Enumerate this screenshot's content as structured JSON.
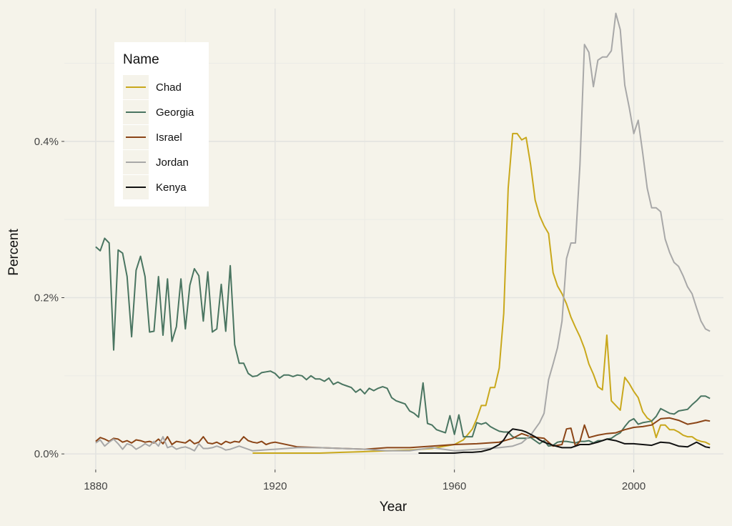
{
  "chart_data": {
    "type": "line",
    "xlabel": "Year",
    "ylabel": "Percent",
    "xlim": [
      1873,
      2020
    ],
    "ylim": [
      -0.0002,
      0.0057
    ],
    "x_ticks": [
      1880,
      1920,
      1960,
      2000
    ],
    "y_ticks": [
      0,
      0.002,
      0.004
    ],
    "y_tick_labels": [
      "0.0%",
      "0.2%",
      "0.4%"
    ],
    "grid": true,
    "legend": {
      "title": "Name",
      "placement": "top-left"
    },
    "series": [
      {
        "name": "Chad",
        "color": "#c9a81c",
        "x": [
          1915,
          1920,
          1925,
          1930,
          1935,
          1940,
          1945,
          1950,
          1955,
          1958,
          1960,
          1962,
          1964,
          1965,
          1966,
          1967,
          1968,
          1969,
          1970,
          1971,
          1972,
          1973,
          1974,
          1975,
          1976,
          1977,
          1978,
          1979,
          1980,
          1981,
          1982,
          1983,
          1984,
          1985,
          1986,
          1987,
          1988,
          1989,
          1990,
          1991,
          1992,
          1993,
          1994,
          1995,
          1996,
          1997,
          1998,
          1999,
          2000,
          2001,
          2002,
          2003,
          2004,
          2005,
          2006,
          2007,
          2008,
          2009,
          2010,
          2011,
          2012,
          2013,
          2014,
          2015,
          2016,
          2017
        ],
        "y": [
          1e-05,
          1e-05,
          1e-05,
          1e-05,
          2e-05,
          3e-05,
          4e-05,
          5e-05,
          7e-05,
          0.0001,
          0.00012,
          0.00018,
          0.00032,
          0.00045,
          0.00062,
          0.00062,
          0.00085,
          0.00085,
          0.0011,
          0.0018,
          0.0034,
          0.0041,
          0.0041,
          0.00402,
          0.00405,
          0.0037,
          0.00325,
          0.00305,
          0.00292,
          0.00282,
          0.00232,
          0.00215,
          0.00205,
          0.00192,
          0.00175,
          0.00162,
          0.0015,
          0.00135,
          0.00115,
          0.00102,
          0.00086,
          0.00082,
          0.00152,
          0.00068,
          0.00062,
          0.00056,
          0.00098,
          0.0009,
          0.0008,
          0.00072,
          0.00054,
          0.00046,
          0.00042,
          0.00021,
          0.00037,
          0.00037,
          0.00031,
          0.00031,
          0.00028,
          0.00024,
          0.00022,
          0.00022,
          0.00018,
          0.00016,
          0.00015,
          0.00012
        ]
      },
      {
        "name": "Georgia",
        "color": "#4a7561",
        "x": [
          1880,
          1881,
          1882,
          1883,
          1884,
          1885,
          1886,
          1887,
          1888,
          1889,
          1890,
          1891,
          1892,
          1893,
          1894,
          1895,
          1896,
          1897,
          1898,
          1899,
          1900,
          1901,
          1902,
          1903,
          1904,
          1905,
          1906,
          1907,
          1908,
          1909,
          1910,
          1911,
          1912,
          1913,
          1914,
          1915,
          1916,
          1917,
          1918,
          1919,
          1920,
          1921,
          1922,
          1923,
          1924,
          1925,
          1926,
          1927,
          1928,
          1929,
          1930,
          1931,
          1932,
          1933,
          1934,
          1935,
          1936,
          1937,
          1938,
          1939,
          1940,
          1941,
          1942,
          1943,
          1944,
          1945,
          1946,
          1947,
          1948,
          1949,
          1950,
          1951,
          1952,
          1953,
          1954,
          1955,
          1956,
          1957,
          1958,
          1959,
          1960,
          1961,
          1962,
          1963,
          1964,
          1965,
          1966,
          1967,
          1968,
          1969,
          1970,
          1971,
          1972,
          1973,
          1974,
          1975,
          1976,
          1977,
          1978,
          1979,
          1980,
          1981,
          1982,
          1983,
          1984,
          1985,
          1986,
          1987,
          1988,
          1989,
          1990,
          1991,
          1992,
          1993,
          1994,
          1995,
          1996,
          1997,
          1998,
          1999,
          2000,
          2001,
          2002,
          2003,
          2004,
          2005,
          2006,
          2007,
          2008,
          2009,
          2010,
          2011,
          2012,
          2013,
          2014,
          2015,
          2016,
          2017
        ],
        "y": [
          0.00265,
          0.0026,
          0.00276,
          0.0027,
          0.00133,
          0.00261,
          0.00257,
          0.00227,
          0.0015,
          0.00235,
          0.00253,
          0.00227,
          0.00156,
          0.00157,
          0.00227,
          0.00152,
          0.00224,
          0.00144,
          0.00163,
          0.00224,
          0.0016,
          0.00216,
          0.00237,
          0.00228,
          0.0017,
          0.00233,
          0.00156,
          0.0016,
          0.00217,
          0.00157,
          0.00241,
          0.0014,
          0.00116,
          0.00116,
          0.00103,
          0.00099,
          0.001,
          0.00104,
          0.00105,
          0.00106,
          0.00103,
          0.00097,
          0.00101,
          0.00101,
          0.00099,
          0.00101,
          0.001,
          0.00095,
          0.001,
          0.00096,
          0.00096,
          0.00093,
          0.00097,
          0.00089,
          0.00092,
          0.00089,
          0.00087,
          0.00085,
          0.00079,
          0.00083,
          0.00077,
          0.00084,
          0.00081,
          0.00084,
          0.00086,
          0.00084,
          0.00072,
          0.00068,
          0.00066,
          0.00064,
          0.00055,
          0.00052,
          0.00047,
          0.00091,
          0.00039,
          0.00037,
          0.00031,
          0.00029,
          0.00027,
          0.00049,
          0.00025,
          0.0005,
          0.00022,
          0.00022,
          0.00022,
          0.0004,
          0.00038,
          0.0004,
          0.00035,
          0.00032,
          0.00029,
          0.00028,
          0.00028,
          0.00022,
          0.0002,
          0.0002,
          0.0002,
          0.00021,
          0.00017,
          0.00013,
          0.00017,
          0.0001,
          0.00011,
          0.00015,
          0.00016,
          0.00016,
          0.00015,
          0.00014,
          0.00016,
          0.00016,
          0.00017,
          0.00014,
          0.00017,
          0.00017,
          0.00019,
          0.0002,
          0.00024,
          0.00027,
          0.00035,
          0.00042,
          0.00045,
          0.00038,
          0.0004,
          0.00041,
          0.00042,
          0.00048,
          0.00058,
          0.00055,
          0.00052,
          0.00051,
          0.00055,
          0.00056,
          0.00057,
          0.00063,
          0.00068,
          0.00074,
          0.00074,
          0.00071
        ]
      },
      {
        "name": "Israel",
        "color": "#8b4517",
        "x": [
          1880,
          1881,
          1882,
          1883,
          1884,
          1885,
          1886,
          1887,
          1888,
          1889,
          1890,
          1891,
          1892,
          1893,
          1894,
          1895,
          1896,
          1897,
          1898,
          1899,
          1900,
          1901,
          1902,
          1903,
          1904,
          1905,
          1906,
          1907,
          1908,
          1909,
          1910,
          1911,
          1912,
          1913,
          1914,
          1915,
          1916,
          1917,
          1918,
          1919,
          1920,
          1925,
          1930,
          1935,
          1940,
          1945,
          1950,
          1955,
          1960,
          1965,
          1970,
          1973,
          1975,
          1977,
          1980,
          1982,
          1984,
          1985,
          1986,
          1987,
          1988,
          1989,
          1990,
          1992,
          1994,
          1996,
          1998,
          2000,
          2002,
          2004,
          2006,
          2008,
          2010,
          2012,
          2014,
          2016,
          2017
        ],
        "y": [
          0.00016,
          0.00021,
          0.00019,
          0.00016,
          0.0002,
          0.00019,
          0.00015,
          0.00017,
          0.00014,
          0.00018,
          0.00017,
          0.00015,
          0.00016,
          0.00014,
          0.00019,
          0.00013,
          0.00022,
          0.00012,
          0.00016,
          0.00015,
          0.00014,
          0.00018,
          0.00013,
          0.00015,
          0.00022,
          0.00014,
          0.00013,
          0.00015,
          0.00012,
          0.00016,
          0.00014,
          0.00016,
          0.00015,
          0.00022,
          0.00017,
          0.00015,
          0.00014,
          0.00016,
          0.00012,
          0.00014,
          0.00015,
          9e-05,
          8e-05,
          7e-05,
          6e-05,
          8e-05,
          8e-05,
          0.0001,
          0.00012,
          0.00013,
          0.00015,
          0.0002,
          0.00026,
          0.00022,
          0.0002,
          0.0001,
          0.00012,
          0.00032,
          0.00033,
          0.0001,
          0.00016,
          0.00037,
          0.00021,
          0.00024,
          0.00026,
          0.00027,
          0.00031,
          0.00034,
          0.00035,
          0.00037,
          0.00045,
          0.00046,
          0.00043,
          0.00038,
          0.0004,
          0.00043,
          0.00042
        ]
      },
      {
        "name": "Jordan",
        "color": "#a8a8a8",
        "x": [
          1880,
          1881,
          1882,
          1883,
          1884,
          1885,
          1886,
          1887,
          1888,
          1889,
          1890,
          1891,
          1892,
          1893,
          1894,
          1895,
          1896,
          1897,
          1898,
          1899,
          1900,
          1901,
          1902,
          1903,
          1904,
          1905,
          1906,
          1907,
          1908,
          1909,
          1910,
          1912,
          1915,
          1920,
          1925,
          1930,
          1935,
          1940,
          1945,
          1950,
          1955,
          1960,
          1965,
          1970,
          1973,
          1975,
          1977,
          1979,
          1980,
          1981,
          1982,
          1983,
          1984,
          1985,
          1986,
          1987,
          1988,
          1989,
          1990,
          1991,
          1992,
          1993,
          1994,
          1995,
          1996,
          1997,
          1998,
          1999,
          2000,
          2001,
          2002,
          2003,
          2004,
          2005,
          2006,
          2007,
          2008,
          2009,
          2010,
          2011,
          2012,
          2013,
          2014,
          2015,
          2016,
          2017
        ],
        "y": [
          0.00014,
          0.00018,
          0.0001,
          0.00015,
          0.00019,
          0.00013,
          6e-05,
          0.00013,
          0.00011,
          6e-05,
          9e-05,
          0.00013,
          0.0001,
          0.00016,
          0.0001,
          0.00022,
          8e-05,
          0.0001,
          6e-05,
          8e-05,
          9e-05,
          7e-05,
          4e-05,
          0.00013,
          7e-05,
          7e-05,
          8e-05,
          0.0001,
          8e-05,
          5e-05,
          6e-05,
          0.0001,
          4e-05,
          6e-05,
          8e-05,
          8e-05,
          7e-05,
          6e-05,
          4e-05,
          4e-05,
          8e-05,
          4e-05,
          6e-05,
          8e-05,
          0.0001,
          0.00014,
          0.00024,
          0.0004,
          0.00052,
          0.00095,
          0.00115,
          0.00136,
          0.0017,
          0.0025,
          0.0027,
          0.0027,
          0.0037,
          0.00524,
          0.00514,
          0.0047,
          0.00504,
          0.00508,
          0.00508,
          0.00516,
          0.00564,
          0.00543,
          0.00472,
          0.00443,
          0.0041,
          0.00427,
          0.00385,
          0.0034,
          0.00315,
          0.00315,
          0.0031,
          0.00275,
          0.00258,
          0.00245,
          0.0024,
          0.00228,
          0.00214,
          0.00205,
          0.00187,
          0.0017,
          0.0016,
          0.00157
        ]
      },
      {
        "name": "Kenya",
        "color": "#111111",
        "x": [
          1952,
          1955,
          1958,
          1960,
          1962,
          1964,
          1966,
          1968,
          1970,
          1971,
          1972,
          1973,
          1974,
          1975,
          1976,
          1977,
          1978,
          1979,
          1980,
          1982,
          1984,
          1986,
          1988,
          1990,
          1992,
          1994,
          1996,
          1998,
          2000,
          2002,
          2004,
          2006,
          2008,
          2010,
          2012,
          2014,
          2016,
          2017
        ],
        "y": [
          1e-05,
          1e-05,
          1e-05,
          1e-05,
          2e-05,
          2e-05,
          3e-05,
          6e-05,
          0.00012,
          0.00018,
          0.00027,
          0.00032,
          0.00031,
          0.0003,
          0.00028,
          0.00025,
          0.00022,
          0.00018,
          0.00015,
          0.00011,
          8e-05,
          8e-05,
          0.00012,
          0.00012,
          0.00015,
          0.00019,
          0.00017,
          0.00013,
          0.00013,
          0.00012,
          0.00011,
          0.00015,
          0.00014,
          0.0001,
          9e-05,
          0.00015,
          9e-05,
          8e-05
        ]
      }
    ]
  }
}
